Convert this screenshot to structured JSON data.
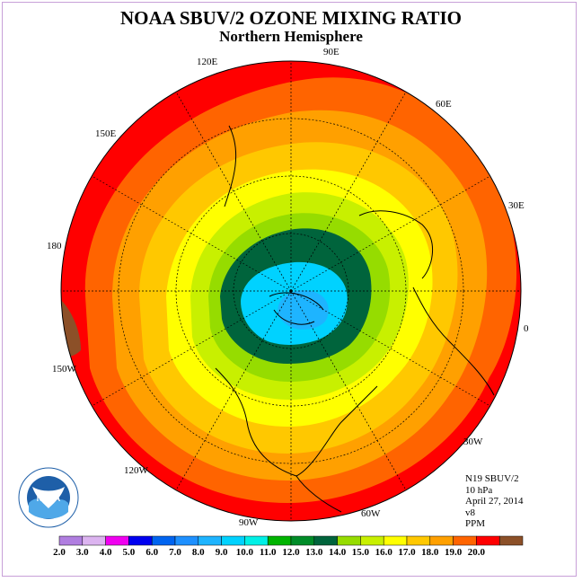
{
  "title": "NOAA SBUV/2 OZONE MIXING RATIO",
  "subtitle": "Northern Hemisphere",
  "longitude_labels": [
    "90E",
    "60E",
    "30E",
    "0",
    "30W",
    "60W",
    "90W",
    "120W",
    "150W",
    "180",
    "150E",
    "120E"
  ],
  "info": {
    "satellite": "N19 SBUV/2",
    "level": "10 hPa",
    "date": "April 27, 2014",
    "version": "v8",
    "units": "PPM"
  },
  "logo_text": "NOAA",
  "colorbar": {
    "ticks": [
      "2.0",
      "3.0",
      "4.0",
      "5.0",
      "6.0",
      "7.0",
      "8.0",
      "9.0",
      "10.0",
      "11.0",
      "12.0",
      "13.0",
      "14.0",
      "15.0",
      "16.0",
      "17.0",
      "18.0",
      "19.0",
      "20.0"
    ],
    "colors": [
      "#b07ee0",
      "#dcb4f0",
      "#f000f0",
      "#0000f0",
      "#0064f0",
      "#1e90ff",
      "#1eb4ff",
      "#00d2ff",
      "#00f0e6",
      "#00b400",
      "#008c28",
      "#00643c",
      "#96dc00",
      "#c8f000",
      "#ffff00",
      "#ffc800",
      "#ffa000",
      "#ff6400",
      "#ff0000",
      "#8c5028"
    ]
  },
  "map_layers": {
    "outer_rim": "#ff0000",
    "levels": [
      "#ff6400",
      "#ffa000",
      "#ffc800",
      "#ffff00",
      "#c8f000",
      "#96dc00",
      "#00643c",
      "#00d2ff",
      "#1eb4ff"
    ]
  }
}
